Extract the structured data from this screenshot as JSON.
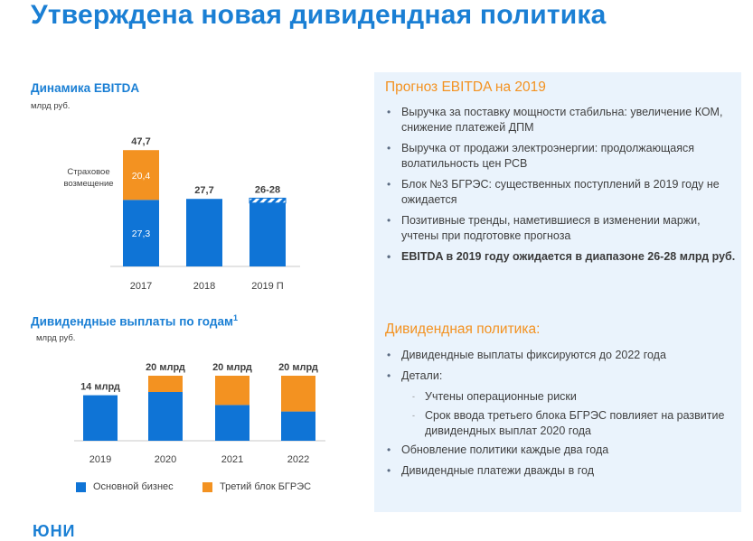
{
  "title": "Утверждена новая дивидендная политика",
  "colors": {
    "blue": "#0f74d6",
    "orange": "#f39221",
    "accent": "#1a7fd4",
    "panel": "#eaf3fc"
  },
  "ebitda": {
    "title": "Динамика EBITDA",
    "unit": "млрд руб."
  },
  "dividends": {
    "title": "Дивидендные выплаты по годам",
    "footnote": "1",
    "unit": "млрд руб."
  },
  "chart_data": [
    {
      "type": "bar",
      "title": "Динамика EBITDA",
      "ylabel": "млрд руб.",
      "categories": [
        "2017",
        "2018",
        "2019 П"
      ],
      "series": [
        {
          "values": [
            27.3,
            27.7,
            26
          ],
          "labels": [
            "27,3",
            "",
            ""
          ]
        },
        {
          "values": [
            20.4,
            0,
            2
          ],
          "labels": [
            "20,4",
            "",
            ""
          ]
        }
      ],
      "totals": [
        "47,7",
        "27,7",
        "26-28"
      ],
      "annotation": "Страховое возмещение",
      "ylim": [
        0,
        50
      ]
    },
    {
      "type": "bar",
      "title": "Дивидендные выплаты по годам",
      "ylabel": "млрд руб.",
      "categories": [
        "2019",
        "2020",
        "2021",
        "2022"
      ],
      "series": [
        {
          "name": "Основной бизнес",
          "values": [
            14,
            15,
            11,
            9
          ]
        },
        {
          "name": "Третий блок БГРЭС",
          "values": [
            0,
            5,
            9,
            11
          ]
        }
      ],
      "totals": [
        "14 млрд",
        "20 млрд",
        "20 млрд",
        "20 млрд"
      ],
      "ylim": [
        0,
        22
      ]
    }
  ],
  "legend": [
    {
      "label": "Основной бизнес"
    },
    {
      "label": "Третий блок БГРЭС"
    }
  ],
  "panel": {
    "forecast_title": "Прогноз EBITDA на 2019",
    "forecast_items": [
      "Выручка за поставку мощности стабильна: увеличение КОМ, снижение платежей ДПМ",
      "Выручка от продажи электроэнергии: продолжающаяся волатильность цен РСВ",
      "Блок №3 БГРЭС: существенных поступлений в 2019 году не ожидается",
      "Позитивные тренды, наметившиеся в изменении маржи, учтены при подготовке прогноза",
      "EBITDA в 2019 году ожидается в диапазоне 26-28 млрд руб."
    ],
    "policy_title": "Дивидендная политика:",
    "policy_item1": "Дивидендные выплаты фиксируются до 2022 года",
    "policy_item2": "Детали:",
    "policy_sub1": "Учтены операционные риски",
    "policy_sub2": "Срок ввода третьего блока БГРЭС повлияет на развитие дивидендных выплат 2020 года",
    "policy_item3": "Обновление политики каждые два года",
    "policy_item4": "Дивидендные платежи дважды в год"
  },
  "footer": "ЮНИ"
}
